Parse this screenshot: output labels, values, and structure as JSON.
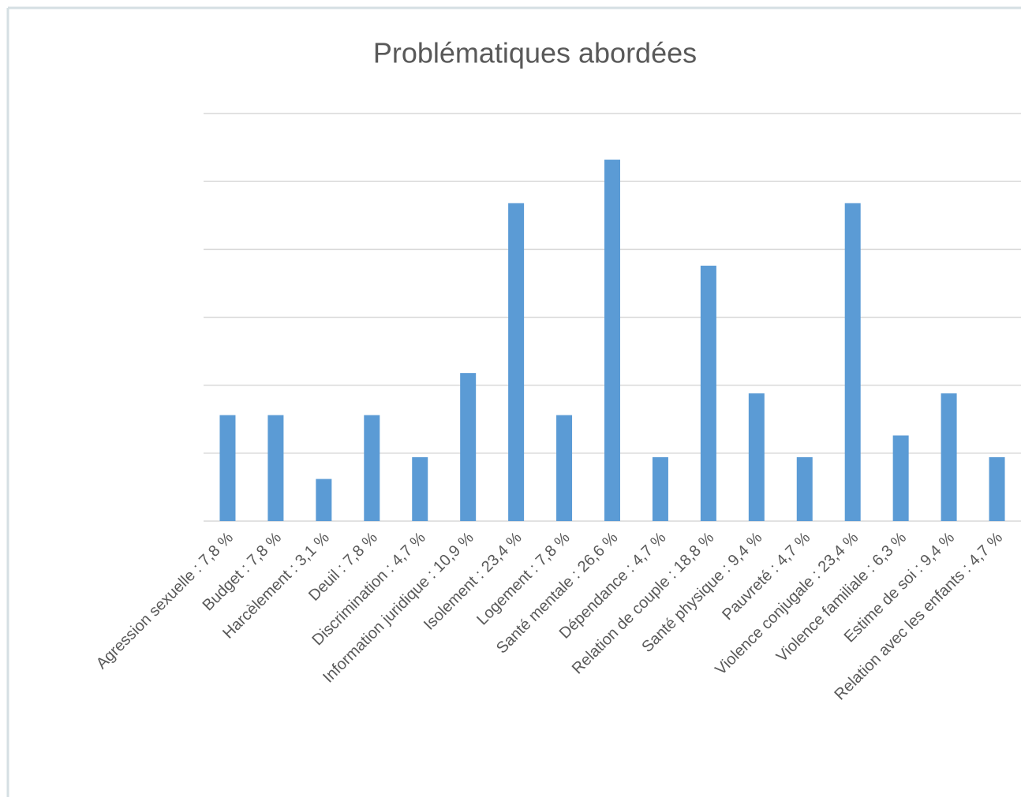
{
  "chart_data": {
    "type": "bar",
    "title": "Problématiques abordées",
    "categories": [
      "Agression sexuelle : 7,8 %",
      "Budget : 7,8 %",
      "Harcèlement : 3,1 %",
      "Deuil : 7,8 %",
      "Discrimination : 4,7 %",
      "Information juridique : 10,9 %",
      "Isolement : 23,4 %",
      "Logement : 7,8 %",
      "Santé mentale : 26,6 %",
      "Dépendance : 4,7 %",
      "Relation de couple : 18,8 %",
      "Santé physique : 9,4 %",
      "Pauvreté : 4,7 %",
      "Violence conjugale : 23,4 %",
      "Violence familiale : 6,3 %",
      "Estime de soi : 9,4 %",
      "Relation avec les enfants : 4,7 %"
    ],
    "values": [
      7.8,
      7.8,
      3.1,
      7.8,
      4.7,
      10.9,
      23.4,
      7.8,
      26.6,
      4.7,
      18.8,
      9.4,
      4.7,
      23.4,
      6.3,
      9.4,
      4.7
    ],
    "color": "#5b9bd5",
    "ylim": [
      0,
      30
    ],
    "yticks": [
      0,
      5,
      10,
      15,
      20,
      25,
      30
    ],
    "grid": true
  }
}
